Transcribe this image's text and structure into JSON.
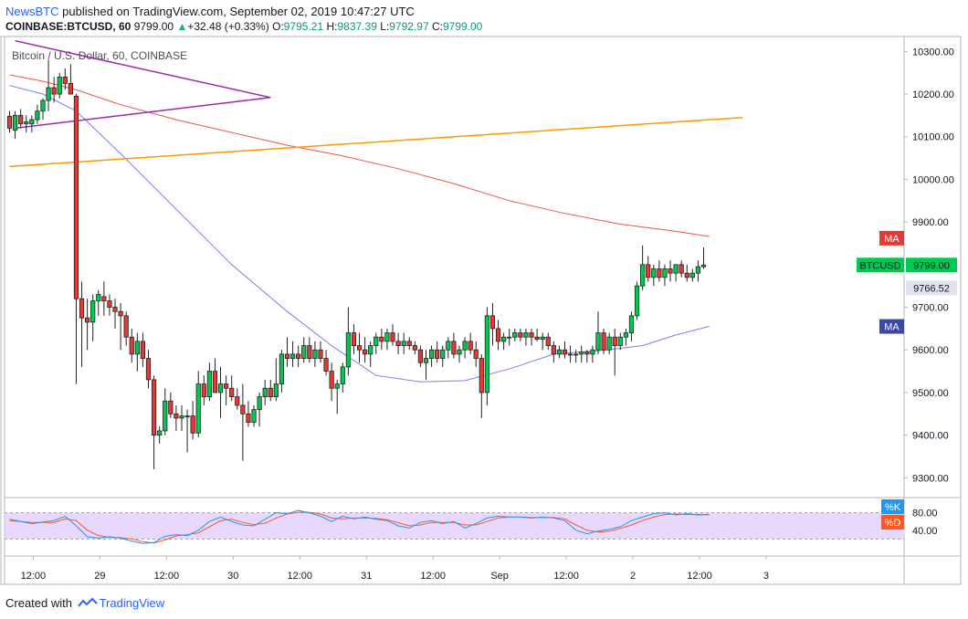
{
  "header": {
    "author": "NewsBTC",
    "published_text": "published on TradingView.com, September 02, 2019 10:47:27 UTC",
    "symbol": "COINBASE:BTCUSD, 60",
    "last": "9799.00",
    "arrow": "▲",
    "change": "+32.48 (+0.33%)",
    "o_label": "O:",
    "o_value": "9795.21",
    "h_label": "H:",
    "h_value": "9837.39",
    "l_label": "L:",
    "l_value": "9792.97",
    "c_label": "C:",
    "c_value": "9799.00"
  },
  "chart_data": {
    "type": "candlestick",
    "title": "Bitcoin / U.S. Dollar, 60, COINBASE",
    "y_ticks": [
      "10300.00",
      "10200.00",
      "10100.00",
      "10000.00",
      "9900.00",
      "9800.00",
      "9700.00",
      "9600.00",
      "9500.00",
      "9400.00",
      "9300.00"
    ],
    "y_tick_values": [
      10300,
      10200,
      10100,
      10000,
      9900,
      9800,
      9700,
      9600,
      9500,
      9400,
      9300
    ],
    "ylim": [
      9260,
      10335
    ],
    "x_labels": [
      "12:00",
      "29",
      "12:00",
      "30",
      "12:00",
      "31",
      "12:00",
      "Sep",
      "12:00",
      "2",
      "12:00",
      "3"
    ],
    "x_label_bars": [
      -1,
      11,
      23,
      35,
      47,
      59,
      71,
      83,
      95,
      107,
      119,
      131
    ],
    "bar_count": 140,
    "candles": [
      [
        10148,
        10160,
        10110,
        10120
      ],
      [
        10115,
        10160,
        10095,
        10150
      ],
      [
        10150,
        10165,
        10120,
        10130
      ],
      [
        10130,
        10150,
        10110,
        10135
      ],
      [
        10130,
        10150,
        10110,
        10140
      ],
      [
        10140,
        10175,
        10130,
        10160
      ],
      [
        10160,
        10190,
        10140,
        10185
      ],
      [
        10185,
        10280,
        10160,
        10215
      ],
      [
        10215,
        10240,
        10180,
        10200
      ],
      [
        10200,
        10250,
        10190,
        10240
      ],
      [
        10240,
        10260,
        10210,
        10225
      ],
      [
        10225,
        10270,
        10200,
        10200
      ],
      [
        10195,
        10200,
        9520,
        9720
      ],
      [
        9720,
        9760,
        9560,
        9675
      ],
      [
        9675,
        9720,
        9600,
        9665
      ],
      [
        9665,
        9730,
        9620,
        9715
      ],
      [
        9715,
        9740,
        9680,
        9730
      ],
      [
        9725,
        9760,
        9680,
        9715
      ],
      [
        9715,
        9730,
        9680,
        9700
      ],
      [
        9700,
        9720,
        9650,
        9690
      ],
      [
        9690,
        9710,
        9600,
        9680
      ],
      [
        9680,
        9690,
        9610,
        9630
      ],
      [
        9630,
        9650,
        9570,
        9590
      ],
      [
        9590,
        9640,
        9550,
        9620
      ],
      [
        9620,
        9640,
        9560,
        9580
      ],
      [
        9580,
        9600,
        9510,
        9530
      ],
      [
        9530,
        9540,
        9320,
        9400
      ],
      [
        9400,
        9420,
        9380,
        9410
      ],
      [
        9410,
        9510,
        9400,
        9480
      ],
      [
        9480,
        9500,
        9440,
        9450
      ],
      [
        9450,
        9470,
        9410,
        9440
      ],
      [
        9440,
        9470,
        9410,
        9445
      ],
      [
        9445,
        9460,
        9360,
        9445
      ],
      [
        9445,
        9480,
        9390,
        9405
      ],
      [
        9405,
        9550,
        9395,
        9520
      ],
      [
        9520,
        9540,
        9470,
        9490
      ],
      [
        9490,
        9570,
        9480,
        9550
      ],
      [
        9550,
        9580,
        9500,
        9500
      ],
      [
        9500,
        9560,
        9440,
        9520
      ],
      [
        9520,
        9540,
        9470,
        9510
      ],
      [
        9510,
        9540,
        9480,
        9490
      ],
      [
        9490,
        9510,
        9460,
        9470
      ],
      [
        9470,
        9520,
        9340,
        9450
      ],
      [
        9450,
        9480,
        9420,
        9430
      ],
      [
        9430,
        9470,
        9420,
        9460
      ],
      [
        9460,
        9500,
        9420,
        9490
      ],
      [
        9490,
        9530,
        9470,
        9510
      ],
      [
        9510,
        9530,
        9480,
        9490
      ],
      [
        9490,
        9580,
        9480,
        9520
      ],
      [
        9520,
        9600,
        9500,
        9590
      ],
      [
        9590,
        9630,
        9560,
        9580
      ],
      [
        9580,
        9620,
        9560,
        9590
      ],
      [
        9590,
        9610,
        9560,
        9580
      ],
      [
        9580,
        9630,
        9570,
        9610
      ],
      [
        9610,
        9630,
        9570,
        9580
      ],
      [
        9580,
        9620,
        9560,
        9600
      ],
      [
        9600,
        9620,
        9570,
        9580
      ],
      [
        9580,
        9600,
        9540,
        9550
      ],
      [
        9550,
        9570,
        9480,
        9510
      ],
      [
        9510,
        9530,
        9450,
        9520
      ],
      [
        9520,
        9570,
        9500,
        9560
      ],
      [
        9560,
        9700,
        9540,
        9640
      ],
      [
        9640,
        9660,
        9590,
        9610
      ],
      [
        9610,
        9640,
        9570,
        9600
      ],
      [
        9600,
        9630,
        9570,
        9590
      ],
      [
        9590,
        9620,
        9560,
        9610
      ],
      [
        9610,
        9640,
        9590,
        9630
      ],
      [
        9630,
        9650,
        9600,
        9620
      ],
      [
        9620,
        9650,
        9600,
        9640
      ],
      [
        9640,
        9660,
        9610,
        9620
      ],
      [
        9620,
        9640,
        9590,
        9610
      ],
      [
        9610,
        9640,
        9590,
        9620
      ],
      [
        9620,
        9630,
        9600,
        9610
      ],
      [
        9610,
        9620,
        9590,
        9600
      ],
      [
        9600,
        9610,
        9560,
        9570
      ],
      [
        9570,
        9600,
        9530,
        9580
      ],
      [
        9580,
        9610,
        9560,
        9600
      ],
      [
        9600,
        9620,
        9570,
        9580
      ],
      [
        9580,
        9610,
        9560,
        9600
      ],
      [
        9600,
        9630,
        9580,
        9620
      ],
      [
        9620,
        9640,
        9580,
        9590
      ],
      [
        9590,
        9610,
        9570,
        9600
      ],
      [
        9600,
        9630,
        9580,
        9620
      ],
      [
        9620,
        9640,
        9590,
        9600
      ],
      [
        9600,
        9620,
        9560,
        9580
      ],
      [
        9580,
        9590,
        9440,
        9500
      ],
      [
        9500,
        9700,
        9470,
        9680
      ],
      [
        9680,
        9710,
        9610,
        9650
      ],
      [
        9650,
        9670,
        9600,
        9620
      ],
      [
        9620,
        9640,
        9600,
        9630
      ],
      [
        9630,
        9650,
        9610,
        9630
      ],
      [
        9630,
        9650,
        9620,
        9640
      ],
      [
        9640,
        9650,
        9620,
        9630
      ],
      [
        9630,
        9650,
        9610,
        9640
      ],
      [
        9640,
        9650,
        9610,
        9630
      ],
      [
        9630,
        9650,
        9620,
        9625
      ],
      [
        9625,
        9640,
        9600,
        9630
      ],
      [
        9630,
        9640,
        9600,
        9610
      ],
      [
        9610,
        9620,
        9570,
        9590
      ],
      [
        9590,
        9610,
        9580,
        9600
      ],
      [
        9600,
        9620,
        9580,
        9590
      ],
      [
        9590,
        9610,
        9570,
        9590
      ],
      [
        9590,
        9600,
        9570,
        9590
      ],
      [
        9590,
        9610,
        9570,
        9595
      ],
      [
        9595,
        9600,
        9570,
        9590
      ],
      [
        9590,
        9610,
        9570,
        9600
      ],
      [
        9600,
        9690,
        9590,
        9640
      ],
      [
        9640,
        9650,
        9590,
        9600
      ],
      [
        9600,
        9640,
        9590,
        9630
      ],
      [
        9630,
        9650,
        9540,
        9610
      ],
      [
        9610,
        9640,
        9600,
        9630
      ],
      [
        9630,
        9650,
        9610,
        9640
      ],
      [
        9640,
        9690,
        9620,
        9680
      ],
      [
        9680,
        9760,
        9670,
        9750
      ],
      [
        9750,
        9845,
        9740,
        9800
      ],
      [
        9800,
        9820,
        9760,
        9770
      ],
      [
        9770,
        9800,
        9750,
        9790
      ],
      [
        9790,
        9810,
        9760,
        9770
      ],
      [
        9770,
        9800,
        9750,
        9790
      ],
      [
        9790,
        9810,
        9760,
        9780
      ],
      [
        9780,
        9800,
        9760,
        9800
      ],
      [
        9800,
        9810,
        9770,
        9780
      ],
      [
        9780,
        9800,
        9760,
        9770
      ],
      [
        9770,
        9790,
        9760,
        9780
      ],
      [
        9780,
        9810,
        9760,
        9795
      ],
      [
        9795,
        9840,
        9790,
        9799
      ]
    ],
    "ma_red": [
      [
        0,
        10245
      ],
      [
        6,
        10230
      ],
      [
        12,
        10210
      ],
      [
        20,
        10175
      ],
      [
        30,
        10140
      ],
      [
        40,
        10110
      ],
      [
        50,
        10080
      ],
      [
        60,
        10055
      ],
      [
        70,
        10025
      ],
      [
        80,
        9990
      ],
      [
        90,
        9950
      ],
      [
        100,
        9920
      ],
      [
        110,
        9895
      ],
      [
        120,
        9878
      ],
      [
        126,
        9866
      ]
    ],
    "ma_blue": [
      [
        0,
        10220
      ],
      [
        6,
        10200
      ],
      [
        12,
        10160
      ],
      [
        20,
        10060
      ],
      [
        30,
        9930
      ],
      [
        40,
        9800
      ],
      [
        50,
        9690
      ],
      [
        58,
        9610
      ],
      [
        66,
        9540
      ],
      [
        74,
        9525
      ],
      [
        82,
        9528
      ],
      [
        90,
        9555
      ],
      [
        98,
        9590
      ],
      [
        106,
        9598
      ],
      [
        114,
        9610
      ],
      [
        120,
        9635
      ],
      [
        126,
        9655
      ]
    ],
    "trend_purple_upper": [
      [
        1,
        10325
      ],
      [
        47,
        10192
      ]
    ],
    "trend_purple_lower": [
      [
        1,
        10120
      ],
      [
        47,
        10192
      ]
    ],
    "trend_orange": [
      [
        0,
        10030
      ],
      [
        132,
        10145
      ]
    ],
    "price_labels": [
      {
        "text": "MA",
        "value": 9862,
        "color": "#e53935"
      },
      {
        "text": "BTCUSD",
        "value": 9799,
        "color": "#00c853"
      },
      {
        "text": "9799.00",
        "value": 9799,
        "color": "#00c853"
      },
      {
        "text": "9766.52",
        "value": 9766.52,
        "color": "#e0e3eb"
      },
      {
        "text": "MA",
        "value": 9655,
        "color": "#3949ab"
      }
    ],
    "stoch": {
      "y_ticks": [
        "80.00",
        "40.00"
      ],
      "y_tick_values": [
        80,
        40
      ],
      "band_high": 80,
      "band_low": 20,
      "k_label": "%K",
      "d_label": "%D",
      "k": [
        [
          0,
          65
        ],
        [
          4,
          55
        ],
        [
          8,
          62
        ],
        [
          10,
          72
        ],
        [
          12,
          50
        ],
        [
          14,
          25
        ],
        [
          16,
          22
        ],
        [
          18,
          25
        ],
        [
          20,
          22
        ],
        [
          22,
          15
        ],
        [
          24,
          10
        ],
        [
          26,
          12
        ],
        [
          28,
          26
        ],
        [
          30,
          30
        ],
        [
          32,
          28
        ],
        [
          34,
          40
        ],
        [
          36,
          60
        ],
        [
          38,
          70
        ],
        [
          40,
          60
        ],
        [
          42,
          52
        ],
        [
          44,
          50
        ],
        [
          46,
          65
        ],
        [
          48,
          80
        ],
        [
          50,
          78
        ],
        [
          52,
          85
        ],
        [
          54,
          80
        ],
        [
          56,
          72
        ],
        [
          58,
          60
        ],
        [
          60,
          72
        ],
        [
          62,
          66
        ],
        [
          64,
          70
        ],
        [
          66,
          65
        ],
        [
          68,
          62
        ],
        [
          70,
          50
        ],
        [
          72,
          45
        ],
        [
          74,
          58
        ],
        [
          76,
          62
        ],
        [
          78,
          55
        ],
        [
          80,
          60
        ],
        [
          82,
          45
        ],
        [
          84,
          55
        ],
        [
          86,
          68
        ],
        [
          88,
          72
        ],
        [
          90,
          70
        ],
        [
          92,
          70
        ],
        [
          94,
          68
        ],
        [
          96,
          70
        ],
        [
          98,
          68
        ],
        [
          100,
          62
        ],
        [
          102,
          40
        ],
        [
          104,
          32
        ],
        [
          106,
          38
        ],
        [
          108,
          42
        ],
        [
          110,
          48
        ],
        [
          112,
          62
        ],
        [
          114,
          70
        ],
        [
          116,
          78
        ],
        [
          118,
          80
        ],
        [
          120,
          75
        ],
        [
          122,
          78
        ],
        [
          124,
          75
        ],
        [
          126,
          76
        ]
      ],
      "d": [
        [
          0,
          62
        ],
        [
          4,
          58
        ],
        [
          8,
          58
        ],
        [
          10,
          66
        ],
        [
          12,
          62
        ],
        [
          14,
          40
        ],
        [
          16,
          28
        ],
        [
          18,
          24
        ],
        [
          20,
          23
        ],
        [
          22,
          20
        ],
        [
          24,
          14
        ],
        [
          26,
          11
        ],
        [
          28,
          18
        ],
        [
          30,
          27
        ],
        [
          32,
          30
        ],
        [
          34,
          34
        ],
        [
          36,
          48
        ],
        [
          38,
          62
        ],
        [
          40,
          65
        ],
        [
          42,
          58
        ],
        [
          44,
          53
        ],
        [
          46,
          56
        ],
        [
          48,
          68
        ],
        [
          50,
          77
        ],
        [
          52,
          81
        ],
        [
          54,
          81
        ],
        [
          56,
          77
        ],
        [
          58,
          68
        ],
        [
          60,
          66
        ],
        [
          62,
          68
        ],
        [
          64,
          68
        ],
        [
          66,
          67
        ],
        [
          68,
          64
        ],
        [
          70,
          57
        ],
        [
          72,
          50
        ],
        [
          74,
          52
        ],
        [
          76,
          58
        ],
        [
          78,
          58
        ],
        [
          80,
          58
        ],
        [
          82,
          52
        ],
        [
          84,
          52
        ],
        [
          86,
          60
        ],
        [
          88,
          68
        ],
        [
          90,
          70
        ],
        [
          92,
          70
        ],
        [
          94,
          69
        ],
        [
          96,
          69
        ],
        [
          98,
          69
        ],
        [
          100,
          66
        ],
        [
          102,
          52
        ],
        [
          104,
          40
        ],
        [
          106,
          36
        ],
        [
          108,
          38
        ],
        [
          110,
          44
        ],
        [
          112,
          52
        ],
        [
          114,
          62
        ],
        [
          116,
          70
        ],
        [
          118,
          76
        ],
        [
          120,
          77
        ],
        [
          122,
          76
        ],
        [
          124,
          76
        ],
        [
          126,
          75
        ]
      ]
    }
  },
  "footer": {
    "created_with": "Created with",
    "brand": "TradingView"
  },
  "colors": {
    "up": "#26a69a",
    "down": "#ef5350",
    "candle_up_fill": "#00c853",
    "candle_down_fill": "#e53935",
    "ma_red": "#ef5350",
    "ma_blue": "#7e7ee6",
    "trend_purple": "#9c27b0",
    "trend_orange": "#ff9800",
    "stoch_bg": "#e9d8fd",
    "stoch_k": "#2196f3",
    "stoch_d": "#ff5722"
  }
}
